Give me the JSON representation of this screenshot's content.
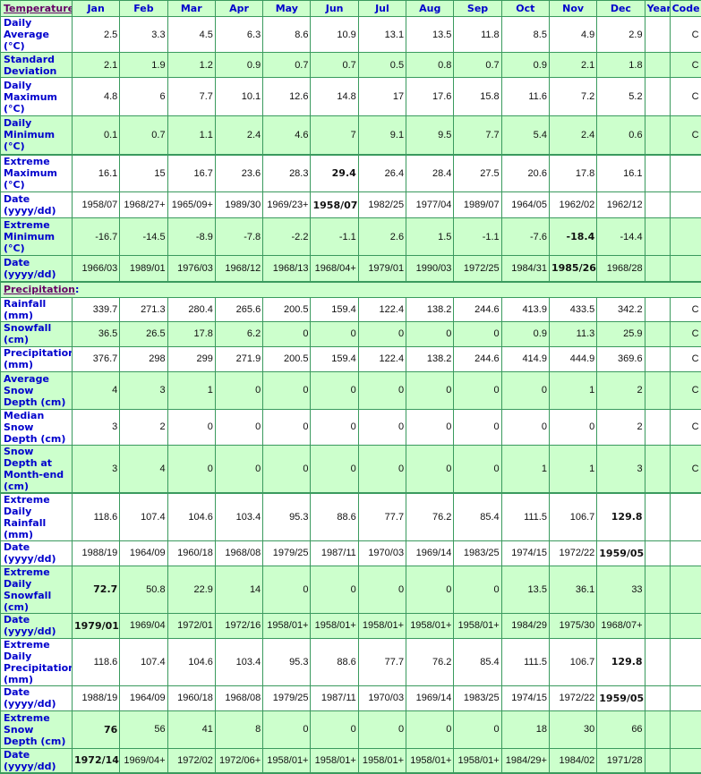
{
  "header": {
    "section": "Temperature",
    "columns": [
      "Jan",
      "Feb",
      "Mar",
      "Apr",
      "May",
      "Jun",
      "Jul",
      "Aug",
      "Sep",
      "Oct",
      "Nov",
      "Dec",
      "Year",
      "Code"
    ]
  },
  "colors": {
    "border": "#3a9a5e",
    "row_green": "#ccffcc",
    "label": "#0000cc",
    "section_title": "#660066"
  },
  "sections": [
    {
      "title": "Temperature",
      "rows": [
        {
          "label": "Daily Average (°C)",
          "values": [
            "2.5",
            "3.3",
            "4.5",
            "6.3",
            "8.6",
            "10.9",
            "13.1",
            "13.5",
            "11.8",
            "8.5",
            "4.9",
            "2.9"
          ],
          "year": "",
          "code": "C",
          "bold": [],
          "shade": "w",
          "h": 28
        },
        {
          "label": "Standard Deviation",
          "values": [
            "2.1",
            "1.9",
            "1.2",
            "0.9",
            "0.7",
            "0.7",
            "0.5",
            "0.8",
            "0.7",
            "0.9",
            "2.1",
            "1.8"
          ],
          "year": "",
          "code": "C",
          "bold": [],
          "shade": "g",
          "h": 28
        },
        {
          "label": "Daily Maximum (°C)",
          "values": [
            "4.8",
            "6",
            "7.7",
            "10.1",
            "12.6",
            "14.8",
            "17",
            "17.6",
            "15.8",
            "11.6",
            "7.2",
            "5.2"
          ],
          "year": "",
          "code": "C",
          "bold": [],
          "shade": "w",
          "h": 43
        },
        {
          "label": "Daily Minimum (°C)",
          "values": [
            "0.1",
            "0.7",
            "1.1",
            "2.4",
            "4.6",
            "7",
            "9.1",
            "9.5",
            "7.7",
            "5.4",
            "2.4",
            "0.6"
          ],
          "year": "",
          "code": "C",
          "bold": [],
          "shade": "g",
          "h": 43,
          "sep": true
        },
        {
          "label": "Extreme Maximum (°C)",
          "values": [
            "16.1",
            "15",
            "16.7",
            "23.6",
            "28.3",
            "29.4",
            "26.4",
            "28.4",
            "27.5",
            "20.6",
            "17.8",
            "16.1"
          ],
          "year": "",
          "code": "",
          "bold": [
            5
          ],
          "shade": "w",
          "h": 42
        },
        {
          "label": "Date (yyyy/dd)",
          "values": [
            "1958/07",
            "1968/27+",
            "1965/09+",
            "1989/30",
            "1969/23+",
            "1958/07",
            "1982/25",
            "1977/04",
            "1989/07",
            "1964/05",
            "1962/02",
            "1962/12"
          ],
          "year": "",
          "code": "",
          "bold": [
            5
          ],
          "shade": "w",
          "h": 29
        },
        {
          "label": "Extreme Minimum (°C)",
          "values": [
            "-16.7",
            "-14.5",
            "-8.9",
            "-7.8",
            "-2.2",
            "-1.1",
            "2.6",
            "1.5",
            "-1.1",
            "-7.6",
            "-18.4",
            "-14.4"
          ],
          "year": "",
          "code": "",
          "bold": [
            10
          ],
          "shade": "g",
          "h": 42
        },
        {
          "label": "Date (yyyy/dd)",
          "values": [
            "1966/03",
            "1989/01",
            "1976/03",
            "1968/12",
            "1968/13",
            "1968/04+",
            "1979/01",
            "1990/03",
            "1972/25",
            "1984/31",
            "1985/26",
            "1968/28"
          ],
          "year": "",
          "code": "",
          "bold": [
            10
          ],
          "shade": "g",
          "h": 29,
          "sep": true
        }
      ]
    },
    {
      "title": "Precipitation",
      "rows": [
        {
          "label": "Rainfall (mm)",
          "values": [
            "339.7",
            "271.3",
            "280.4",
            "265.6",
            "200.5",
            "159.4",
            "122.4",
            "138.2",
            "244.6",
            "413.9",
            "433.5",
            "342.2"
          ],
          "year": "",
          "code": "C",
          "bold": [],
          "shade": "w",
          "h": 15
        },
        {
          "label": "Snowfall (cm)",
          "values": [
            "36.5",
            "26.5",
            "17.8",
            "6.2",
            "0",
            "0",
            "0",
            "0",
            "0",
            "0.9",
            "11.3",
            "25.9"
          ],
          "year": "",
          "code": "C",
          "bold": [],
          "shade": "g",
          "h": 28
        },
        {
          "label": "Precipitation (mm)",
          "values": [
            "376.7",
            "298",
            "299",
            "271.9",
            "200.5",
            "159.4",
            "122.4",
            "138.2",
            "244.6",
            "414.9",
            "444.9",
            "369.6"
          ],
          "year": "",
          "code": "C",
          "bold": [],
          "shade": "w",
          "h": 28
        },
        {
          "label": "Average Snow Depth (cm)",
          "values": [
            "4",
            "3",
            "1",
            "0",
            "0",
            "0",
            "0",
            "0",
            "0",
            "0",
            "1",
            "2"
          ],
          "year": "",
          "code": "C",
          "bold": [],
          "shade": "g",
          "h": 42
        },
        {
          "label": "Median Snow Depth (cm)",
          "values": [
            "3",
            "2",
            "0",
            "0",
            "0",
            "0",
            "0",
            "0",
            "0",
            "0",
            "0",
            "2"
          ],
          "year": "",
          "code": "C",
          "bold": [],
          "shade": "w",
          "h": 28
        },
        {
          "label": "Snow Depth at Month-end (cm)",
          "values": [
            "3",
            "4",
            "0",
            "0",
            "0",
            "0",
            "0",
            "0",
            "0",
            "1",
            "1",
            "3"
          ],
          "year": "",
          "code": "C",
          "bold": [],
          "shade": "g",
          "h": 42,
          "sep": true
        },
        {
          "label": "Extreme Daily Rainfall (mm)",
          "values": [
            "118.6",
            "107.4",
            "104.6",
            "103.4",
            "95.3",
            "88.6",
            "77.7",
            "76.2",
            "85.4",
            "111.5",
            "106.7",
            "129.8"
          ],
          "year": "",
          "code": "",
          "bold": [
            11
          ],
          "shade": "w",
          "h": 28
        },
        {
          "label": "Date (yyyy/dd)",
          "values": [
            "1988/19",
            "1964/09",
            "1960/18",
            "1968/08",
            "1979/25",
            "1987/11",
            "1970/03",
            "1969/14",
            "1983/25",
            "1974/15",
            "1972/22",
            "1959/05"
          ],
          "year": "",
          "code": "",
          "bold": [
            11
          ],
          "shade": "w",
          "h": 28
        },
        {
          "label": "Extreme Daily Snowfall (cm)",
          "values": [
            "72.7",
            "50.8",
            "22.9",
            "14",
            "0",
            "0",
            "0",
            "0",
            "0",
            "13.5",
            "36.1",
            "33"
          ],
          "year": "",
          "code": "",
          "bold": [
            0
          ],
          "shade": "g",
          "h": 42
        },
        {
          "label": "Date (yyyy/dd)",
          "values": [
            "1979/01",
            "1969/04",
            "1972/01",
            "1972/16",
            "1958/01+",
            "1958/01+",
            "1958/01+",
            "1958/01+",
            "1958/01+",
            "1984/29",
            "1975/30",
            "1968/07+"
          ],
          "year": "",
          "code": "",
          "bold": [
            0
          ],
          "shade": "g",
          "h": 28
        },
        {
          "label": "Extreme Daily Precipitation (mm)",
          "values": [
            "118.6",
            "107.4",
            "104.6",
            "103.4",
            "95.3",
            "88.6",
            "77.7",
            "76.2",
            "85.4",
            "111.5",
            "106.7",
            "129.8"
          ],
          "year": "",
          "code": "",
          "bold": [
            11
          ],
          "shade": "w",
          "h": 42
        },
        {
          "label": "Date (yyyy/dd)",
          "values": [
            "1988/19",
            "1964/09",
            "1960/18",
            "1968/08",
            "1979/25",
            "1987/11",
            "1970/03",
            "1969/14",
            "1983/25",
            "1974/15",
            "1972/22",
            "1959/05"
          ],
          "year": "",
          "code": "",
          "bold": [
            11
          ],
          "shade": "w",
          "h": 28
        },
        {
          "label": "Extreme Snow Depth (cm)",
          "values": [
            "76",
            "56",
            "41",
            "8",
            "0",
            "0",
            "0",
            "0",
            "0",
            "18",
            "30",
            "66"
          ],
          "year": "",
          "code": "",
          "bold": [
            0
          ],
          "shade": "g",
          "h": 42
        },
        {
          "label": "Date (yyyy/dd)",
          "values": [
            "1972/14",
            "1969/04+",
            "1972/02",
            "1972/06+",
            "1958/01+",
            "1958/01+",
            "1958/01+",
            "1958/01+",
            "1958/01+",
            "1984/29+",
            "1984/02",
            "1971/28"
          ],
          "year": "",
          "code": "",
          "bold": [
            0
          ],
          "shade": "g",
          "h": 28,
          "sep": true
        }
      ]
    }
  ]
}
